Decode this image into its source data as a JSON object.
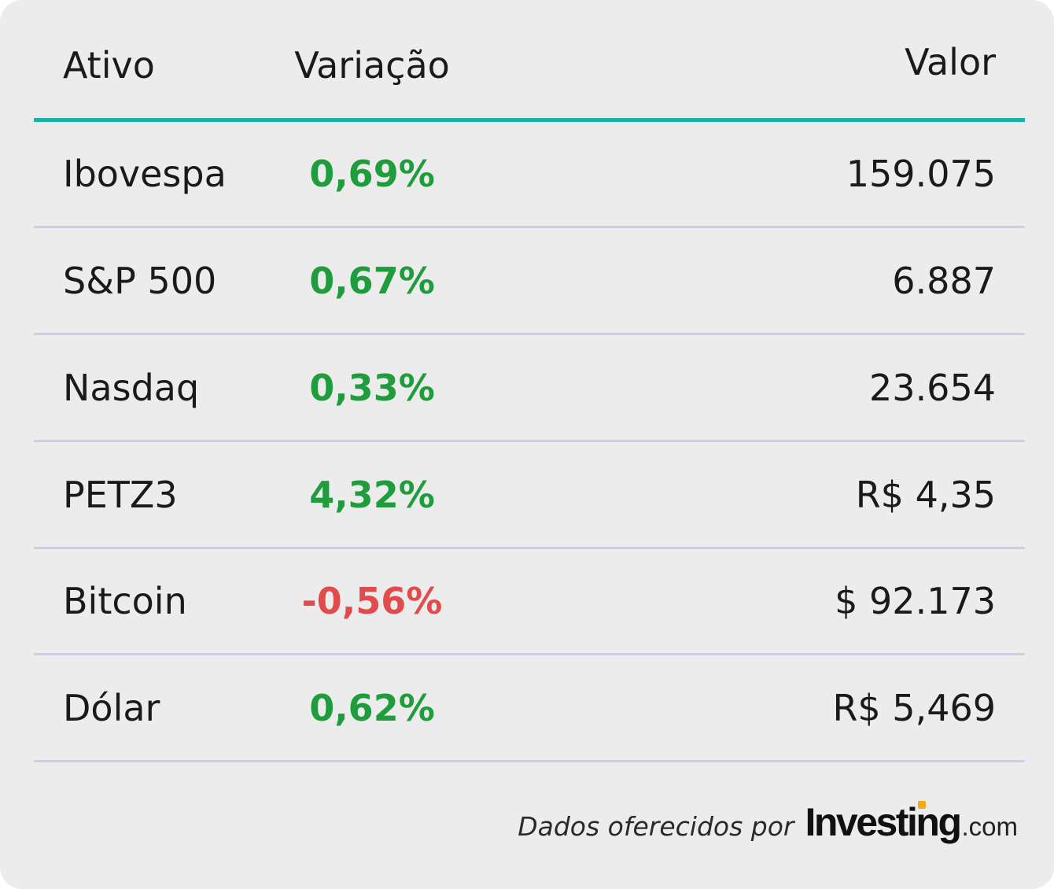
{
  "table": {
    "headers": {
      "asset": "Ativo",
      "change": "Variação",
      "value": "Valor"
    },
    "rows": [
      {
        "asset": "Ibovespa",
        "change": "0,69%",
        "value": "159.075",
        "direction": "up"
      },
      {
        "asset": "S&P 500",
        "change": "0,67%",
        "value": "6.887",
        "direction": "up"
      },
      {
        "asset": "Nasdaq",
        "change": "0,33%",
        "value": "23.654",
        "direction": "up"
      },
      {
        "asset": "PETZ3",
        "change": "4,32%",
        "value": "R$ 4,35",
        "direction": "up"
      },
      {
        "asset": "Bitcoin",
        "change": "-0,56%",
        "value": "$ 92.173",
        "direction": "down"
      },
      {
        "asset": "Dólar",
        "change": "0,62%",
        "value": "R$ 5,469",
        "direction": "up"
      }
    ]
  },
  "footer": {
    "provided_by": "Dados oferecidos por",
    "logo_brand": "Investing",
    "logo_tld": ".com"
  },
  "colors": {
    "accent_rule": "#1ab3a6",
    "positive": "#1f9d3d",
    "negative": "#e24b4b",
    "row_divider": "#cdd0df",
    "card_background": "#ececec",
    "logo_accent": "#f4a81b"
  }
}
